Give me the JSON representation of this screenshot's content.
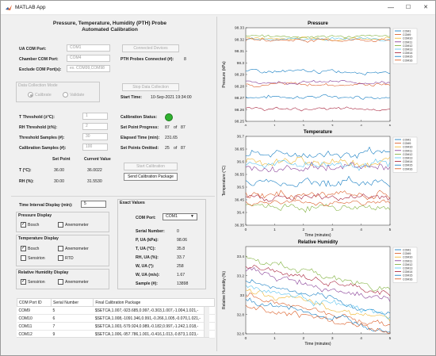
{
  "window": {
    "title": "MATLAB App",
    "min": "—",
    "max": "☐",
    "close": "✕"
  },
  "header": {
    "title_line1": "Pressure, Temperature, Humidity (PTH) Probe",
    "title_line2": "Automated Calibration"
  },
  "ports": {
    "ua_label": "UA COM Port:",
    "ua_value": "COM1",
    "chamber_label": "Chamber COM Port:",
    "chamber_value": "COM4",
    "exclude_label": "Exclude COM Port(s):",
    "exclude_placeholder": "ex. COM99,COM98",
    "connected_button": "Connected Devices",
    "probes_label": "PTH Probes Connected (#):",
    "probes_value": "8"
  },
  "mode": {
    "title": "Data Collection Mode",
    "calibrate": "Calibrate",
    "validate": "Validate",
    "stop_button": "Stop Data Collection",
    "start_time_label": "Start Time:",
    "start_time_value": "10-Sep-2021 19:34:00"
  },
  "thresholds": {
    "t_label": "T Threshold (±°C):",
    "t_value": "1",
    "rh_label": "RH Threshold (±%):",
    "rh_value": "2",
    "samples_label": "Threshold Samples (#):",
    "samples_value": "30",
    "calib_label": "Calibration Samples (#):",
    "calib_value": "100"
  },
  "status": {
    "calib_status_label": "Calibration Status:",
    "progress_label": "Set Point Progress:",
    "progress_value": "87",
    "progress_of": "of",
    "progress_total": "87",
    "elapsed_label": "Elapsed Time (min):",
    "elapsed_value": "231.65",
    "omitted_label": "Set Points Omitted:",
    "omitted_value": "25",
    "omitted_of": "of",
    "omitted_total": "87",
    "start_calib_button": "Start Calibration",
    "send_button": "Send Calibration Package"
  },
  "setpoint": {
    "col_setpoint": "Set Point",
    "col_current": "Current Value",
    "t_label": "T (°C):",
    "t_set": "36.00",
    "t_current": "36.0022",
    "rh_label": "RH (%):",
    "rh_set": "30.00",
    "rh_current": "31.5530"
  },
  "display": {
    "interval_label": "Time Interval Display (min):",
    "interval_value": "5",
    "pressure_title": "Pressure Display",
    "pressure_opt1": "Bosch",
    "pressure_opt2": "Anemometer",
    "temp_title": "Temperature Display",
    "temp_opt1": "Bosch",
    "temp_opt2": "Anemometer",
    "temp_opt3": "Sensirion",
    "temp_opt4": "RTD",
    "rh_title": "Relative Humidity Display",
    "rh_opt1": "Sensirion",
    "rh_opt2": "Anemometer"
  },
  "exact": {
    "title": "Exact Values",
    "port_label": "COM Port:",
    "port_value": "COM1",
    "rows": [
      {
        "label": "Serial Number:",
        "value": "0"
      },
      {
        "label": "P, UA (kPa):",
        "value": "98.06"
      },
      {
        "label": "T, UA (°C):",
        "value": "35.8"
      },
      {
        "label": "RH, UA (%):",
        "value": "33.7"
      },
      {
        "label": "W, UA (°):",
        "value": "258"
      },
      {
        "label": "W, UA (m/s):",
        "value": "1.67"
      },
      {
        "label": "Sample (#):",
        "value": "13898"
      }
    ]
  },
  "table": {
    "headers": [
      "COM Port ID",
      "Serial Number",
      "Final Calibration Package"
    ],
    "rows": [
      [
        "COM9",
        "5",
        "$SETCA,1.007,-923.685,0.997,-0.303,1.007,-1.004,1.021,-"
      ],
      [
        "COM10",
        "6",
        "$SETCA,1.008,-1091.346,0.991,-0.266,1.005,-0.070,1.021,-"
      ],
      [
        "COM11",
        "7",
        "$SETCA,1.003,-579.924,0.989,-0.182,0.997,-1.242,1.018,-"
      ],
      [
        "COM12",
        "9",
        "$SETCA,1.006,-957.786,1.001,-0.416,1.013,-0.873,1.023,-"
      ]
    ]
  },
  "colors": {
    "accent_green": "#2fb12f",
    "border": "#c8c8c8"
  },
  "legend_names": [
    "COM1",
    "COM9",
    "COM10",
    "COM11",
    "COM12",
    "COM13",
    "COM14",
    "COM15",
    "COM16"
  ],
  "chart_data": [
    {
      "type": "line",
      "title": "Pressure",
      "xlabel": "Time (minutes)",
      "ylabel": "Pressure (kPa)",
      "xlim": [
        0,
        5
      ],
      "ylim": [
        98.25,
        98.33
      ],
      "xticks": [
        "0",
        "1",
        "2",
        "3",
        "4",
        "5"
      ],
      "yticks": [
        "98.25",
        "98.26",
        "98.27",
        "98.28",
        "98.29",
        "98.3",
        "98.31",
        "98.32",
        "98.33"
      ],
      "series": [
        {
          "name": "COM1",
          "color": "#0072BD",
          "base": 98.271,
          "noise": 0.0015
        },
        {
          "name": "COM9",
          "color": "#D95319",
          "base": 98.2815,
          "noise": 0.0015
        },
        {
          "name": "COM10",
          "color": "#EDB120",
          "base": 98.321,
          "noise": 0.0012
        },
        {
          "name": "COM11",
          "color": "#7E2F8E",
          "base": 98.2835,
          "noise": 0.0013
        },
        {
          "name": "COM12",
          "color": "#77AC30",
          "base": 98.3225,
          "noise": 0.0012
        },
        {
          "name": "COM13",
          "color": "#4DBEEE",
          "base": 98.3205,
          "noise": 0.0012
        },
        {
          "name": "COM14",
          "color": "#A2142F",
          "base": 98.2605,
          "noise": 0.0012
        },
        {
          "name": "COM15",
          "color": "#0072BD",
          "base": 98.2925,
          "noise": 0.0014
        },
        {
          "name": "COM16",
          "color": "#D95319",
          "base": 98.3195,
          "noise": 0.0012
        }
      ]
    },
    {
      "type": "line",
      "title": "Temperature",
      "xlabel": "Time (minutes)",
      "ylabel": "Temperature (°C)",
      "xlim": [
        0,
        5
      ],
      "ylim": [
        36.35,
        36.7
      ],
      "xticks": [
        "0",
        "1",
        "2",
        "3",
        "4",
        "5"
      ],
      "yticks": [
        "36.35",
        "36.4",
        "36.45",
        "36.5",
        "36.55",
        "36.6",
        "36.65",
        "36.7"
      ],
      "series": [
        {
          "name": "COM1",
          "color": "#0072BD",
          "base": 36.63,
          "noise": 0.015
        },
        {
          "name": "COM9",
          "color": "#D95319",
          "base": 36.47,
          "noise": 0.015
        },
        {
          "name": "COM10",
          "color": "#EDB120",
          "base": 36.6,
          "noise": 0.015
        },
        {
          "name": "COM11",
          "color": "#7E2F8E",
          "base": 36.58,
          "noise": 0.015
        },
        {
          "name": "COM12",
          "color": "#77AC30",
          "base": 36.42,
          "noise": 0.012
        },
        {
          "name": "COM13",
          "color": "#4DBEEE",
          "base": 36.59,
          "noise": 0.015
        },
        {
          "name": "COM14",
          "color": "#A2142F",
          "base": 36.46,
          "noise": 0.012
        },
        {
          "name": "COM15",
          "color": "#0072BD",
          "base": 36.52,
          "noise": 0.015
        },
        {
          "name": "COM16",
          "color": "#D95319",
          "base": 36.44,
          "noise": 0.01
        }
      ]
    },
    {
      "type": "line",
      "title": "Relative Humidity",
      "xlabel": "Time (minutes)",
      "ylabel": "Relative Humidity (%)",
      "xlim": [
        0,
        5
      ],
      "ylim": [
        32.6,
        33.5
      ],
      "xticks": [
        "0",
        "1",
        "2",
        "3",
        "4",
        "5"
      ],
      "yticks": [
        "32.6",
        "32.8",
        "33",
        "33.2",
        "33.4"
      ],
      "series": [
        {
          "name": "COM1",
          "color": "#0072BD",
          "start": 33.15,
          "end": 32.8,
          "noise": 0.03
        },
        {
          "name": "COM9",
          "color": "#D95319",
          "start": 33.0,
          "end": 32.68,
          "noise": 0.03
        },
        {
          "name": "COM10",
          "color": "#EDB120",
          "start": 33.05,
          "end": 32.75,
          "noise": 0.03
        },
        {
          "name": "COM11",
          "color": "#7E2F8E",
          "start": 33.25,
          "end": 32.95,
          "noise": 0.03
        },
        {
          "name": "COM12",
          "color": "#77AC30",
          "start": 33.38,
          "end": 33.05,
          "noise": 0.03
        },
        {
          "name": "COM13",
          "color": "#4DBEEE",
          "start": 33.1,
          "end": 32.78,
          "noise": 0.03
        },
        {
          "name": "COM14",
          "color": "#A2142F",
          "start": 33.3,
          "end": 33.0,
          "noise": 0.03
        },
        {
          "name": "COM15",
          "color": "#0072BD",
          "start": 32.95,
          "end": 32.65,
          "noise": 0.03
        },
        {
          "name": "COM16",
          "color": "#D95319",
          "start": 32.9,
          "end": 32.62,
          "noise": 0.03
        }
      ]
    }
  ]
}
